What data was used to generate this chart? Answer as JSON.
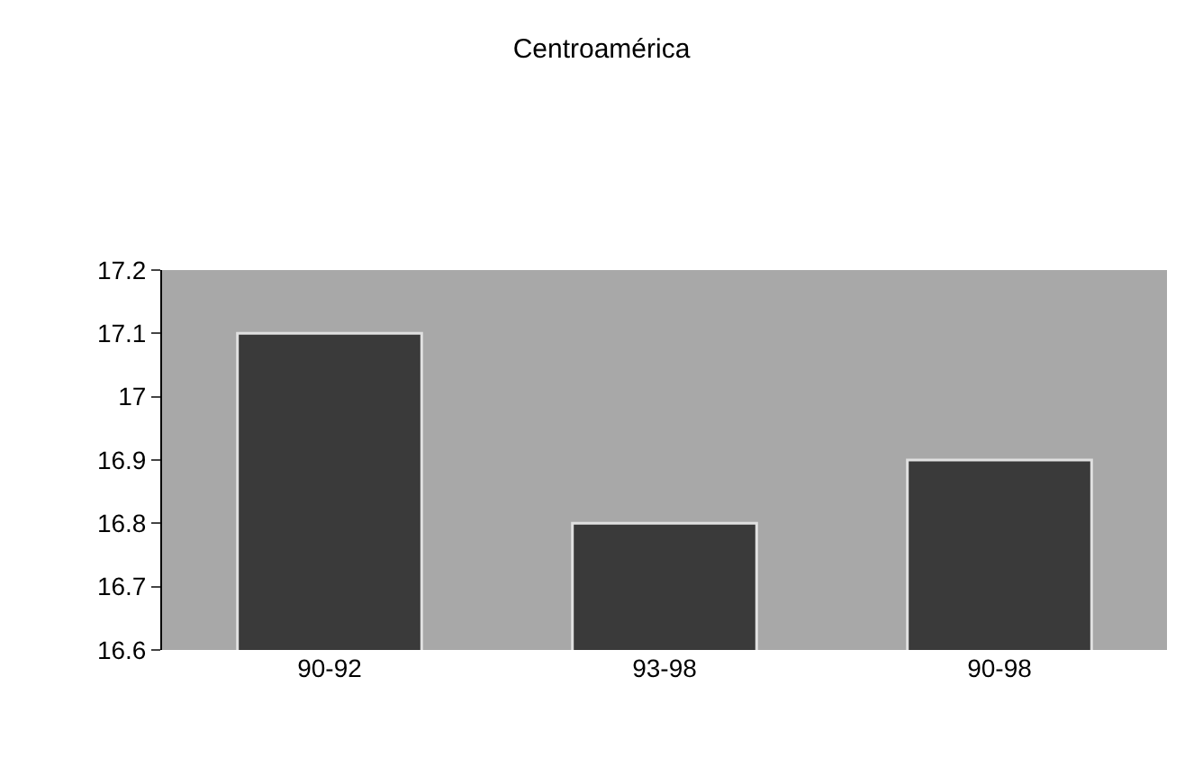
{
  "chart_data": {
    "type": "bar",
    "title": "Centroamérica",
    "categories": [
      "90-92",
      "93-98",
      "90-98"
    ],
    "values": [
      17.1,
      16.8,
      16.9
    ],
    "color": "#3a3a3a",
    "ylim": [
      16.6,
      17.2
    ],
    "yticks": [
      16.6,
      16.7,
      16.8,
      16.9,
      17,
      17.1,
      17.2
    ],
    "grid": false
  }
}
